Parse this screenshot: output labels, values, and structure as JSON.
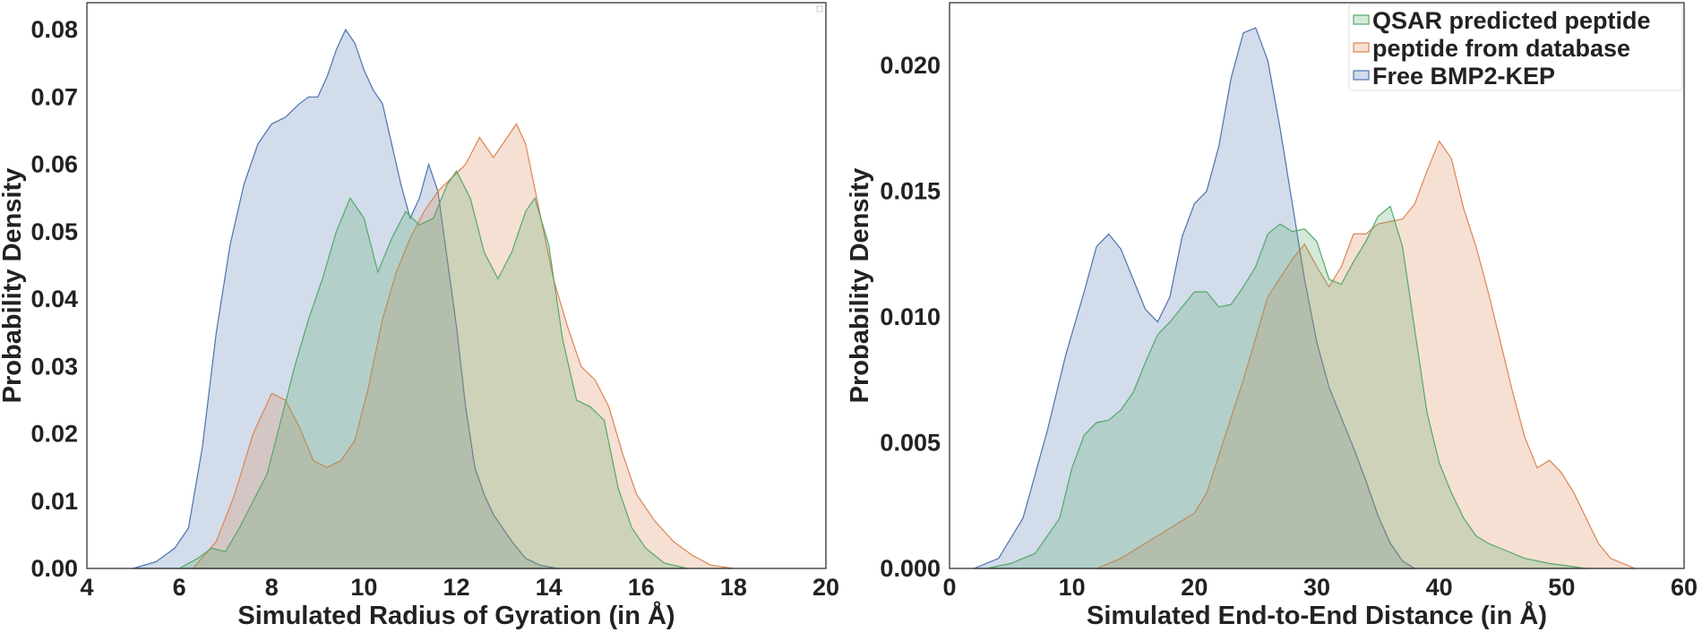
{
  "chart_data": [
    {
      "type": "area",
      "title": "",
      "xlabel": "Simulated Radius of Gyration (in Å)",
      "ylabel": "Probability Density",
      "xlim": [
        4,
        20
      ],
      "ylim": [
        0,
        0.084
      ],
      "xticks": [
        "4",
        "6",
        "8",
        "10",
        "12",
        "14",
        "16",
        "18",
        "20"
      ],
      "yticks": [
        "0.00",
        "0.01",
        "0.02",
        "0.03",
        "0.04",
        "0.05",
        "0.06",
        "0.07",
        "0.08"
      ],
      "grid": false,
      "legend": "none",
      "series": [
        {
          "key": "free",
          "fill": "#4c72b0",
          "stroke": "#4c72b0",
          "points": [
            [
              5.0,
              0
            ],
            [
              5.5,
              0.001
            ],
            [
              5.9,
              0.003
            ],
            [
              6.2,
              0.006
            ],
            [
              6.5,
              0.018
            ],
            [
              6.8,
              0.035
            ],
            [
              7.1,
              0.048
            ],
            [
              7.4,
              0.057
            ],
            [
              7.7,
              0.063
            ],
            [
              8.0,
              0.066
            ],
            [
              8.3,
              0.067
            ],
            [
              8.6,
              0.069
            ],
            [
              8.8,
              0.07
            ],
            [
              9.0,
              0.07
            ],
            [
              9.2,
              0.073
            ],
            [
              9.4,
              0.077
            ],
            [
              9.6,
              0.08
            ],
            [
              9.8,
              0.078
            ],
            [
              10.0,
              0.074
            ],
            [
              10.2,
              0.071
            ],
            [
              10.4,
              0.069
            ],
            [
              10.6,
              0.063
            ],
            [
              10.8,
              0.057
            ],
            [
              11.0,
              0.052
            ],
            [
              11.2,
              0.055
            ],
            [
              11.4,
              0.06
            ],
            [
              11.6,
              0.056
            ],
            [
              11.8,
              0.046
            ],
            [
              12.0,
              0.036
            ],
            [
              12.2,
              0.024
            ],
            [
              12.4,
              0.015
            ],
            [
              12.6,
              0.011
            ],
            [
              12.8,
              0.008
            ],
            [
              13.0,
              0.006
            ],
            [
              13.2,
              0.004
            ],
            [
              13.5,
              0.0015
            ],
            [
              13.8,
              0.0005
            ],
            [
              14.2,
              0
            ]
          ]
        },
        {
          "key": "db",
          "fill": "#dd8452",
          "stroke": "#dd8452",
          "points": [
            [
              6.3,
              0
            ],
            [
              6.8,
              0.004
            ],
            [
              7.2,
              0.011
            ],
            [
              7.6,
              0.02
            ],
            [
              8.0,
              0.026
            ],
            [
              8.3,
              0.025
            ],
            [
              8.6,
              0.021
            ],
            [
              8.9,
              0.016
            ],
            [
              9.2,
              0.015
            ],
            [
              9.5,
              0.016
            ],
            [
              9.8,
              0.019
            ],
            [
              10.1,
              0.027
            ],
            [
              10.4,
              0.037
            ],
            [
              10.7,
              0.044
            ],
            [
              11.0,
              0.049
            ],
            [
              11.3,
              0.053
            ],
            [
              11.6,
              0.056
            ],
            [
              11.9,
              0.058
            ],
            [
              12.2,
              0.06
            ],
            [
              12.5,
              0.064
            ],
            [
              12.8,
              0.061
            ],
            [
              13.0,
              0.063
            ],
            [
              13.3,
              0.066
            ],
            [
              13.5,
              0.063
            ],
            [
              13.8,
              0.053
            ],
            [
              14.1,
              0.043
            ],
            [
              14.4,
              0.036
            ],
            [
              14.7,
              0.03
            ],
            [
              15.0,
              0.028
            ],
            [
              15.3,
              0.024
            ],
            [
              15.6,
              0.017
            ],
            [
              15.9,
              0.011
            ],
            [
              16.3,
              0.007
            ],
            [
              16.7,
              0.004
            ],
            [
              17.1,
              0.002
            ],
            [
              17.5,
              0.0005
            ],
            [
              18.0,
              0
            ]
          ]
        },
        {
          "key": "qsar",
          "fill": "#55a868",
          "stroke": "#55a868",
          "points": [
            [
              6.0,
              0
            ],
            [
              6.4,
              0.0015
            ],
            [
              6.7,
              0.003
            ],
            [
              7.0,
              0.0025
            ],
            [
              7.3,
              0.006
            ],
            [
              7.6,
              0.01
            ],
            [
              7.9,
              0.014
            ],
            [
              8.2,
              0.022
            ],
            [
              8.5,
              0.03
            ],
            [
              8.8,
              0.037
            ],
            [
              9.1,
              0.043
            ],
            [
              9.4,
              0.05
            ],
            [
              9.7,
              0.055
            ],
            [
              10.0,
              0.052
            ],
            [
              10.3,
              0.044
            ],
            [
              10.6,
              0.049
            ],
            [
              10.9,
              0.053
            ],
            [
              11.2,
              0.051
            ],
            [
              11.5,
              0.052
            ],
            [
              11.8,
              0.057
            ],
            [
              12.0,
              0.059
            ],
            [
              12.3,
              0.055
            ],
            [
              12.6,
              0.047
            ],
            [
              12.9,
              0.043
            ],
            [
              13.2,
              0.047
            ],
            [
              13.5,
              0.053
            ],
            [
              13.7,
              0.055
            ],
            [
              14.0,
              0.048
            ],
            [
              14.3,
              0.034
            ],
            [
              14.6,
              0.025
            ],
            [
              14.9,
              0.024
            ],
            [
              15.2,
              0.022
            ],
            [
              15.5,
              0.012
            ],
            [
              15.8,
              0.006
            ],
            [
              16.1,
              0.003
            ],
            [
              16.5,
              0.0008
            ],
            [
              17.0,
              0
            ]
          ]
        }
      ]
    },
    {
      "type": "area",
      "title": "",
      "xlabel": "Simulated End-to-End Distance (in Å)",
      "ylabel": "Probability Density",
      "xlim": [
        0,
        60
      ],
      "ylim": [
        0,
        0.0225
      ],
      "xticks": [
        "0",
        "10",
        "20",
        "30",
        "40",
        "50",
        "60"
      ],
      "yticks": [
        "0.000",
        "0.005",
        "0.010",
        "0.015",
        "0.020"
      ],
      "grid": false,
      "legend": "top-right",
      "series": [
        {
          "key": "free",
          "name": "Free BMP2-KEP",
          "fill": "#4c72b0",
          "stroke": "#4c72b0",
          "points": [
            [
              2,
              0
            ],
            [
              4,
              0.0004
            ],
            [
              6,
              0.002
            ],
            [
              8,
              0.0055
            ],
            [
              9.5,
              0.0085
            ],
            [
              11,
              0.011
            ],
            [
              12,
              0.0128
            ],
            [
              13,
              0.0133
            ],
            [
              14,
              0.0127
            ],
            [
              15,
              0.0115
            ],
            [
              16,
              0.0103
            ],
            [
              17,
              0.0098
            ],
            [
              18,
              0.0108
            ],
            [
              19,
              0.0132
            ],
            [
              20,
              0.0145
            ],
            [
              21,
              0.015
            ],
            [
              22,
              0.0168
            ],
            [
              23,
              0.0195
            ],
            [
              24,
              0.0213
            ],
            [
              25,
              0.0215
            ],
            [
              26,
              0.0202
            ],
            [
              27,
              0.0175
            ],
            [
              28,
              0.0145
            ],
            [
              29,
              0.0115
            ],
            [
              30,
              0.009
            ],
            [
              31,
              0.0072
            ],
            [
              32,
              0.006
            ],
            [
              33,
              0.0048
            ],
            [
              34,
              0.0035
            ],
            [
              35,
              0.0021
            ],
            [
              36,
              0.001
            ],
            [
              37,
              0.0003
            ],
            [
              38,
              0
            ]
          ]
        },
        {
          "key": "db",
          "name": "peptide from database",
          "fill": "#dd8452",
          "stroke": "#dd8452",
          "points": [
            [
              12,
              0
            ],
            [
              14,
              0.0004
            ],
            [
              16,
              0.001
            ],
            [
              18,
              0.0016
            ],
            [
              20,
              0.0022
            ],
            [
              21,
              0.003
            ],
            [
              22,
              0.0045
            ],
            [
              24,
              0.0075
            ],
            [
              26,
              0.0108
            ],
            [
              28,
              0.0123
            ],
            [
              29,
              0.0129
            ],
            [
              30,
              0.012
            ],
            [
              31,
              0.0112
            ],
            [
              32,
              0.012
            ],
            [
              33,
              0.0133
            ],
            [
              34,
              0.0133
            ],
            [
              35,
              0.0137
            ],
            [
              36,
              0.0138
            ],
            [
              37,
              0.0139
            ],
            [
              38,
              0.0145
            ],
            [
              39,
              0.0158
            ],
            [
              40,
              0.017
            ],
            [
              41,
              0.0163
            ],
            [
              42,
              0.0143
            ],
            [
              43,
              0.0128
            ],
            [
              44,
              0.011
            ],
            [
              45,
              0.009
            ],
            [
              46,
              0.007
            ],
            [
              47,
              0.0052
            ],
            [
              48,
              0.004
            ],
            [
              49,
              0.0043
            ],
            [
              50,
              0.0038
            ],
            [
              51,
              0.003
            ],
            [
              52,
              0.002
            ],
            [
              53,
              0.001
            ],
            [
              54,
              0.0004
            ],
            [
              56,
              0
            ]
          ]
        },
        {
          "key": "qsar",
          "name": "QSAR predicted peptide",
          "fill": "#55a868",
          "stroke": "#55a868",
          "points": [
            [
              3,
              0
            ],
            [
              5,
              0.0002
            ],
            [
              7,
              0.0006
            ],
            [
              9,
              0.002
            ],
            [
              10,
              0.004
            ],
            [
              11,
              0.0053
            ],
            [
              12,
              0.0058
            ],
            [
              13,
              0.0059
            ],
            [
              14,
              0.0063
            ],
            [
              15,
              0.007
            ],
            [
              16,
              0.0082
            ],
            [
              17,
              0.0093
            ],
            [
              18,
              0.0098
            ],
            [
              19,
              0.0104
            ],
            [
              20,
              0.011
            ],
            [
              21,
              0.011
            ],
            [
              22,
              0.0104
            ],
            [
              23,
              0.0105
            ],
            [
              24,
              0.0112
            ],
            [
              25,
              0.012
            ],
            [
              26,
              0.0133
            ],
            [
              27,
              0.0137
            ],
            [
              28,
              0.0134
            ],
            [
              29,
              0.0135
            ],
            [
              30,
              0.013
            ],
            [
              31,
              0.0115
            ],
            [
              32,
              0.0113
            ],
            [
              33,
              0.0122
            ],
            [
              34,
              0.013
            ],
            [
              35,
              0.014
            ],
            [
              36,
              0.0144
            ],
            [
              37,
              0.0128
            ],
            [
              38,
              0.0095
            ],
            [
              39,
              0.0062
            ],
            [
              40,
              0.0042
            ],
            [
              41,
              0.003
            ],
            [
              42,
              0.002
            ],
            [
              43,
              0.0013
            ],
            [
              44,
              0.001
            ],
            [
              45,
              0.0008
            ],
            [
              47,
              0.0004
            ],
            [
              49,
              0.0002
            ],
            [
              52,
              0
            ]
          ]
        }
      ]
    }
  ]
}
